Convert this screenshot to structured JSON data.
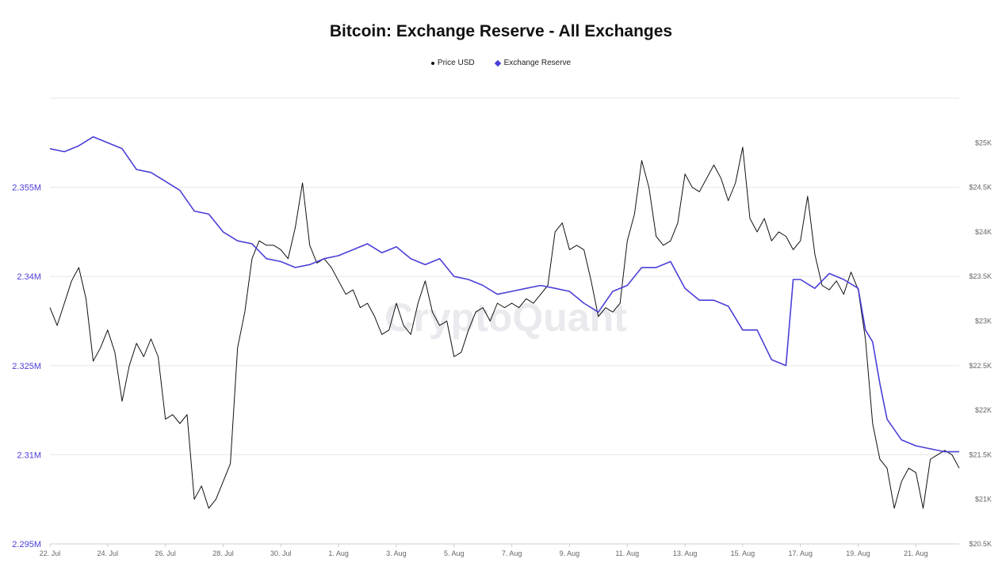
{
  "chart_data": {
    "type": "line",
    "title": "Bitcoin: Exchange Reserve - All Exchanges",
    "watermark": "CryptoQuant",
    "legend_position": "top-center",
    "grid": true,
    "colors": {
      "price": "#111111",
      "reserve": "#4b3fd8",
      "grid": "#e6e6e6",
      "left_axis": "#4b3fd8",
      "right_axis": "#666666"
    },
    "x_axis": {
      "tick_labels": [
        "22. Jul",
        "24. Jul",
        "26. Jul",
        "28. Jul",
        "30. Jul",
        "1. Aug",
        "3. Aug",
        "5. Aug",
        "7. Aug",
        "9. Aug",
        "11. Aug",
        "13. Aug",
        "15. Aug",
        "17. Aug",
        "19. Aug",
        "21. Aug"
      ],
      "range": [
        "2022-07-22",
        "2022-08-22T12:00"
      ]
    },
    "y_left": {
      "label": "",
      "range": [
        2295000,
        2370000
      ],
      "tick_values": [
        2295000,
        2310000,
        2325000,
        2340000,
        2355000
      ],
      "tick_labels": [
        "2.295M",
        "2.31M",
        "2.325M",
        "2.34M",
        "2.355M"
      ]
    },
    "y_right": {
      "label": "",
      "range": [
        20500,
        25500
      ],
      "tick_values": [
        20500,
        21000,
        21500,
        22000,
        22500,
        23000,
        23500,
        24000,
        24500,
        25000
      ],
      "tick_labels": [
        "$20.5K",
        "$21K",
        "$21.5K",
        "$22K",
        "$22.5K",
        "$23K",
        "$23.5K",
        "$24K",
        "$24.5K",
        "$25K"
      ]
    },
    "series": [
      {
        "name": "Price USD",
        "axis": "right",
        "points": [
          [
            "2022-07-22T00:00",
            23150
          ],
          [
            "2022-07-22T06:00",
            22950
          ],
          [
            "2022-07-22T12:00",
            23200
          ],
          [
            "2022-07-22T18:00",
            23450
          ],
          [
            "2022-07-23T00:00",
            23600
          ],
          [
            "2022-07-23T06:00",
            23250
          ],
          [
            "2022-07-23T12:00",
            22550
          ],
          [
            "2022-07-23T18:00",
            22700
          ],
          [
            "2022-07-24T00:00",
            22900
          ],
          [
            "2022-07-24T06:00",
            22650
          ],
          [
            "2022-07-24T12:00",
            22100
          ],
          [
            "2022-07-24T18:00",
            22500
          ],
          [
            "2022-07-25T00:00",
            22750
          ],
          [
            "2022-07-25T06:00",
            22600
          ],
          [
            "2022-07-25T12:00",
            22800
          ],
          [
            "2022-07-25T18:00",
            22600
          ],
          [
            "2022-07-26T00:00",
            21900
          ],
          [
            "2022-07-26T06:00",
            21950
          ],
          [
            "2022-07-26T12:00",
            21850
          ],
          [
            "2022-07-26T18:00",
            21950
          ],
          [
            "2022-07-27T00:00",
            21000
          ],
          [
            "2022-07-27T06:00",
            21150
          ],
          [
            "2022-07-27T12:00",
            20900
          ],
          [
            "2022-07-27T18:00",
            21000
          ],
          [
            "2022-07-28T00:00",
            21200
          ],
          [
            "2022-07-28T06:00",
            21400
          ],
          [
            "2022-07-28T12:00",
            22700
          ],
          [
            "2022-07-28T18:00",
            23100
          ],
          [
            "2022-07-29T00:00",
            23700
          ],
          [
            "2022-07-29T06:00",
            23900
          ],
          [
            "2022-07-29T12:00",
            23850
          ],
          [
            "2022-07-29T18:00",
            23850
          ],
          [
            "2022-07-30T00:00",
            23800
          ],
          [
            "2022-07-30T06:00",
            23700
          ],
          [
            "2022-07-30T12:00",
            24050
          ],
          [
            "2022-07-30T18:00",
            24550
          ],
          [
            "2022-07-31T00:00",
            23850
          ],
          [
            "2022-07-31T06:00",
            23650
          ],
          [
            "2022-07-31T12:00",
            23700
          ],
          [
            "2022-07-31T18:00",
            23600
          ],
          [
            "2022-08-01T00:00",
            23450
          ],
          [
            "2022-08-01T06:00",
            23300
          ],
          [
            "2022-08-01T12:00",
            23350
          ],
          [
            "2022-08-01T18:00",
            23150
          ],
          [
            "2022-08-02T00:00",
            23200
          ],
          [
            "2022-08-02T06:00",
            23050
          ],
          [
            "2022-08-02T12:00",
            22850
          ],
          [
            "2022-08-02T18:00",
            22900
          ],
          [
            "2022-08-03T00:00",
            23200
          ],
          [
            "2022-08-03T06:00",
            22950
          ],
          [
            "2022-08-03T12:00",
            22850
          ],
          [
            "2022-08-03T18:00",
            23200
          ],
          [
            "2022-08-04T00:00",
            23450
          ],
          [
            "2022-08-04T06:00",
            23100
          ],
          [
            "2022-08-04T12:00",
            22950
          ],
          [
            "2022-08-04T18:00",
            23000
          ],
          [
            "2022-08-05T00:00",
            22600
          ],
          [
            "2022-08-05T06:00",
            22650
          ],
          [
            "2022-08-05T12:00",
            22900
          ],
          [
            "2022-08-05T18:00",
            23100
          ],
          [
            "2022-08-06T00:00",
            23150
          ],
          [
            "2022-08-06T06:00",
            23000
          ],
          [
            "2022-08-06T12:00",
            23200
          ],
          [
            "2022-08-06T18:00",
            23150
          ],
          [
            "2022-08-07T00:00",
            23200
          ],
          [
            "2022-08-07T06:00",
            23150
          ],
          [
            "2022-08-07T12:00",
            23250
          ],
          [
            "2022-08-07T18:00",
            23200
          ],
          [
            "2022-08-08T00:00",
            23300
          ],
          [
            "2022-08-08T06:00",
            23400
          ],
          [
            "2022-08-08T12:00",
            24000
          ],
          [
            "2022-08-08T18:00",
            24100
          ],
          [
            "2022-08-09T00:00",
            23800
          ],
          [
            "2022-08-09T06:00",
            23850
          ],
          [
            "2022-08-09T12:00",
            23800
          ],
          [
            "2022-08-09T18:00",
            23450
          ],
          [
            "2022-08-10T00:00",
            23050
          ],
          [
            "2022-08-10T06:00",
            23150
          ],
          [
            "2022-08-10T12:00",
            23100
          ],
          [
            "2022-08-10T18:00",
            23200
          ],
          [
            "2022-08-11T00:00",
            23900
          ],
          [
            "2022-08-11T06:00",
            24200
          ],
          [
            "2022-08-11T12:00",
            24800
          ],
          [
            "2022-08-11T18:00",
            24500
          ],
          [
            "2022-08-12T00:00",
            23950
          ],
          [
            "2022-08-12T06:00",
            23850
          ],
          [
            "2022-08-12T12:00",
            23900
          ],
          [
            "2022-08-12T18:00",
            24100
          ],
          [
            "2022-08-13T00:00",
            24650
          ],
          [
            "2022-08-13T06:00",
            24500
          ],
          [
            "2022-08-13T12:00",
            24450
          ],
          [
            "2022-08-13T18:00",
            24600
          ],
          [
            "2022-08-14T00:00",
            24750
          ],
          [
            "2022-08-14T06:00",
            24600
          ],
          [
            "2022-08-14T12:00",
            24350
          ],
          [
            "2022-08-14T18:00",
            24550
          ],
          [
            "2022-08-15T00:00",
            24950
          ],
          [
            "2022-08-15T06:00",
            24150
          ],
          [
            "2022-08-15T12:00",
            24000
          ],
          [
            "2022-08-15T18:00",
            24150
          ],
          [
            "2022-08-16T00:00",
            23900
          ],
          [
            "2022-08-16T06:00",
            24000
          ],
          [
            "2022-08-16T12:00",
            23950
          ],
          [
            "2022-08-16T18:00",
            23800
          ],
          [
            "2022-08-17T00:00",
            23900
          ],
          [
            "2022-08-17T06:00",
            24400
          ],
          [
            "2022-08-17T12:00",
            23750
          ],
          [
            "2022-08-17T18:00",
            23400
          ],
          [
            "2022-08-18T00:00",
            23350
          ],
          [
            "2022-08-18T06:00",
            23450
          ],
          [
            "2022-08-18T12:00",
            23300
          ],
          [
            "2022-08-18T18:00",
            23550
          ],
          [
            "2022-08-19T00:00",
            23350
          ],
          [
            "2022-08-19T06:00",
            22800
          ],
          [
            "2022-08-19T12:00",
            21850
          ],
          [
            "2022-08-19T18:00",
            21450
          ],
          [
            "2022-08-20T00:00",
            21350
          ],
          [
            "2022-08-20T06:00",
            20900
          ],
          [
            "2022-08-20T12:00",
            21200
          ],
          [
            "2022-08-20T18:00",
            21350
          ],
          [
            "2022-08-21T00:00",
            21300
          ],
          [
            "2022-08-21T06:00",
            20900
          ],
          [
            "2022-08-21T12:00",
            21450
          ],
          [
            "2022-08-21T18:00",
            21500
          ],
          [
            "2022-08-22T00:00",
            21550
          ],
          [
            "2022-08-22T06:00",
            21500
          ],
          [
            "2022-08-22T12:00",
            21350
          ]
        ]
      },
      {
        "name": "Exchange Reserve",
        "axis": "left",
        "points": [
          [
            "2022-07-22T00:00",
            2361500
          ],
          [
            "2022-07-22T12:00",
            2361000
          ],
          [
            "2022-07-23T00:00",
            2362000
          ],
          [
            "2022-07-23T12:00",
            2363500
          ],
          [
            "2022-07-24T00:00",
            2362500
          ],
          [
            "2022-07-24T12:00",
            2361500
          ],
          [
            "2022-07-25T00:00",
            2358000
          ],
          [
            "2022-07-25T12:00",
            2357500
          ],
          [
            "2022-07-26T00:00",
            2356000
          ],
          [
            "2022-07-26T12:00",
            2354500
          ],
          [
            "2022-07-27T00:00",
            2351000
          ],
          [
            "2022-07-27T12:00",
            2350500
          ],
          [
            "2022-07-28T00:00",
            2347500
          ],
          [
            "2022-07-28T12:00",
            2346000
          ],
          [
            "2022-07-29T00:00",
            2345500
          ],
          [
            "2022-07-29T12:00",
            2343000
          ],
          [
            "2022-07-30T00:00",
            2342500
          ],
          [
            "2022-07-30T12:00",
            2341500
          ],
          [
            "2022-07-31T00:00",
            2342000
          ],
          [
            "2022-07-31T12:00",
            2343000
          ],
          [
            "2022-08-01T00:00",
            2343500
          ],
          [
            "2022-08-01T12:00",
            2344500
          ],
          [
            "2022-08-02T00:00",
            2345500
          ],
          [
            "2022-08-02T12:00",
            2344000
          ],
          [
            "2022-08-03T00:00",
            2345000
          ],
          [
            "2022-08-03T12:00",
            2343000
          ],
          [
            "2022-08-04T00:00",
            2342000
          ],
          [
            "2022-08-04T12:00",
            2343000
          ],
          [
            "2022-08-05T00:00",
            2340000
          ],
          [
            "2022-08-05T12:00",
            2339500
          ],
          [
            "2022-08-06T00:00",
            2338500
          ],
          [
            "2022-08-06T12:00",
            2337000
          ],
          [
            "2022-08-07T00:00",
            2337500
          ],
          [
            "2022-08-07T12:00",
            2338000
          ],
          [
            "2022-08-08T00:00",
            2338500
          ],
          [
            "2022-08-08T12:00",
            2338000
          ],
          [
            "2022-08-09T00:00",
            2337500
          ],
          [
            "2022-08-09T12:00",
            2335500
          ],
          [
            "2022-08-10T00:00",
            2334000
          ],
          [
            "2022-08-10T12:00",
            2337500
          ],
          [
            "2022-08-11T00:00",
            2338500
          ],
          [
            "2022-08-11T12:00",
            2341500
          ],
          [
            "2022-08-12T00:00",
            2341500
          ],
          [
            "2022-08-12T12:00",
            2342500
          ],
          [
            "2022-08-13T00:00",
            2338000
          ],
          [
            "2022-08-13T12:00",
            2336000
          ],
          [
            "2022-08-14T00:00",
            2336000
          ],
          [
            "2022-08-14T12:00",
            2335000
          ],
          [
            "2022-08-15T00:00",
            2331000
          ],
          [
            "2022-08-15T12:00",
            2331000
          ],
          [
            "2022-08-16T00:00",
            2326000
          ],
          [
            "2022-08-16T12:00",
            2325000
          ],
          [
            "2022-08-16T18:00",
            2339500
          ],
          [
            "2022-08-17T00:00",
            2339500
          ],
          [
            "2022-08-17T12:00",
            2338000
          ],
          [
            "2022-08-18T00:00",
            2340500
          ],
          [
            "2022-08-18T12:00",
            2339500
          ],
          [
            "2022-08-19T00:00",
            2338000
          ],
          [
            "2022-08-19T06:00",
            2331000
          ],
          [
            "2022-08-19T12:00",
            2329000
          ],
          [
            "2022-08-19T18:00",
            2322000
          ],
          [
            "2022-08-20T00:00",
            2316000
          ],
          [
            "2022-08-20T12:00",
            2312500
          ],
          [
            "2022-08-21T00:00",
            2311500
          ],
          [
            "2022-08-21T12:00",
            2311000
          ],
          [
            "2022-08-22T00:00",
            2310500
          ],
          [
            "2022-08-22T12:00",
            2310500
          ]
        ]
      }
    ]
  }
}
